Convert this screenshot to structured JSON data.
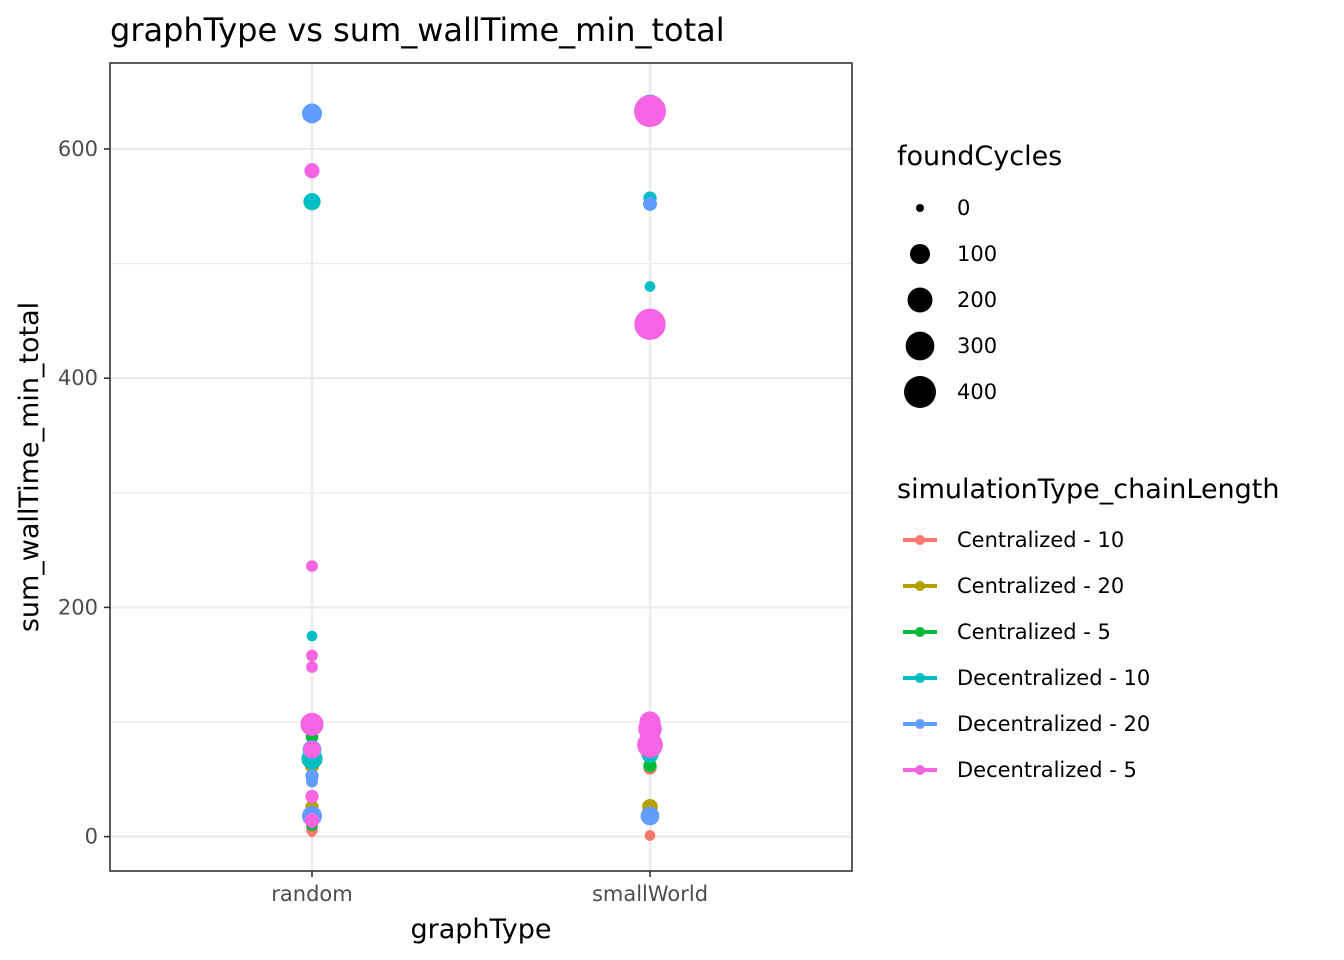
{
  "chart_data": {
    "type": "scatter",
    "title": "graphType  vs  sum_wallTime_min_total",
    "xlabel": "graphType",
    "ylabel": "sum_wallTime_min_total",
    "categories": [
      "random",
      "smallWorld"
    ],
    "ylim": [
      -30,
      675
    ],
    "yticks": [
      0,
      200,
      400,
      600
    ],
    "grid": true,
    "legend_position": "right",
    "size_legend": {
      "title": "foundCycles",
      "entries": [
        0,
        100,
        200,
        300,
        400
      ]
    },
    "color_legend": {
      "title": "simulationType_chainLength",
      "entries": [
        {
          "label": "Centralized - 10",
          "color": "#F8766D"
        },
        {
          "label": "Centralized - 20",
          "color": "#B79F00"
        },
        {
          "label": "Centralized - 5",
          "color": "#00BA38"
        },
        {
          "label": "Decentralized - 10",
          "color": "#00BFC4"
        },
        {
          "label": "Decentralized - 20",
          "color": "#619CFF"
        },
        {
          "label": "Decentralized - 5",
          "color": "#F564E3"
        }
      ]
    },
    "series": [
      {
        "name": "Centralized - 10",
        "points": [
          {
            "x": "random",
            "y": 3,
            "size": 0
          },
          {
            "x": "random",
            "y": 6,
            "size": 10
          },
          {
            "x": "smallWorld",
            "y": 1,
            "size": 5
          },
          {
            "x": "smallWorld",
            "y": 60,
            "size": 20
          }
        ]
      },
      {
        "name": "Centralized - 20",
        "points": [
          {
            "x": "random",
            "y": 26,
            "size": 20
          },
          {
            "x": "random",
            "y": 62,
            "size": 30
          },
          {
            "x": "random",
            "y": 20,
            "size": 15
          },
          {
            "x": "smallWorld",
            "y": 26,
            "size": 40
          },
          {
            "x": "smallWorld",
            "y": 70,
            "size": 30
          }
        ]
      },
      {
        "name": "Centralized - 5",
        "points": [
          {
            "x": "random",
            "y": 87,
            "size": 15
          },
          {
            "x": "random",
            "y": 70,
            "size": 25
          },
          {
            "x": "random",
            "y": 10,
            "size": 10
          },
          {
            "x": "smallWorld",
            "y": 62,
            "size": 20
          },
          {
            "x": "smallWorld",
            "y": 74,
            "size": 25
          }
        ]
      },
      {
        "name": "Decentralized - 10",
        "points": [
          {
            "x": "random",
            "y": 554,
            "size": 60
          },
          {
            "x": "random",
            "y": 175,
            "size": 5
          },
          {
            "x": "random",
            "y": 68,
            "size": 120
          },
          {
            "x": "random",
            "y": 18,
            "size": 60
          },
          {
            "x": "smallWorld",
            "y": 636,
            "size": 230
          },
          {
            "x": "smallWorld",
            "y": 557,
            "size": 20
          },
          {
            "x": "smallWorld",
            "y": 480,
            "size": 5
          },
          {
            "x": "smallWorld",
            "y": 72,
            "size": 60
          }
        ]
      },
      {
        "name": "Decentralized - 20",
        "points": [
          {
            "x": "random",
            "y": 631,
            "size": 100
          },
          {
            "x": "random",
            "y": 76,
            "size": 80
          },
          {
            "x": "random",
            "y": 53,
            "size": 20
          },
          {
            "x": "random",
            "y": 48,
            "size": 10
          },
          {
            "x": "random",
            "y": 18,
            "size": 100
          },
          {
            "x": "smallWorld",
            "y": 552,
            "size": 25
          },
          {
            "x": "smallWorld",
            "y": 18,
            "size": 80
          }
        ]
      },
      {
        "name": "Decentralized - 5",
        "points": [
          {
            "x": "random",
            "y": 581,
            "size": 35
          },
          {
            "x": "random",
            "y": 236,
            "size": 10
          },
          {
            "x": "random",
            "y": 158,
            "size": 10
          },
          {
            "x": "random",
            "y": 148,
            "size": 10
          },
          {
            "x": "random",
            "y": 98,
            "size": 160
          },
          {
            "x": "random",
            "y": 76,
            "size": 60
          },
          {
            "x": "random",
            "y": 35,
            "size": 20
          },
          {
            "x": "random",
            "y": 14,
            "size": 30
          },
          {
            "x": "smallWorld",
            "y": 633,
            "size": 400
          },
          {
            "x": "smallWorld",
            "y": 447,
            "size": 380
          },
          {
            "x": "smallWorld",
            "y": 100,
            "size": 120
          },
          {
            "x": "smallWorld",
            "y": 94,
            "size": 170
          },
          {
            "x": "smallWorld",
            "y": 80,
            "size": 220
          }
        ]
      }
    ]
  }
}
